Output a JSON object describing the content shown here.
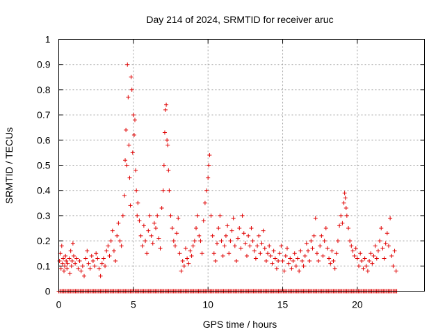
{
  "chart_data": {
    "type": "scatter",
    "title": "Day 214 of 2024, SRMTID for receiver aruc",
    "xlabel": "GPS time / hours",
    "ylabel": "SRMTID / TECUs",
    "xlim": [
      0,
      24.5
    ],
    "ylim": [
      0,
      1
    ],
    "x_ticks": [
      0,
      5,
      10,
      15,
      20
    ],
    "x_tick_labels": [
      "0",
      "5",
      "10",
      "15",
      "20"
    ],
    "y_ticks": [
      0,
      0.1,
      0.2,
      0.3,
      0.4,
      0.5,
      0.6,
      0.7,
      0.8,
      0.9,
      1
    ],
    "y_tick_labels": [
      "0",
      "0.1",
      "0.2",
      "0.3",
      "0.4",
      "0.5",
      "0.6",
      "0.7",
      "0.8",
      "0.9",
      "1"
    ],
    "grid": true,
    "marker": "plus",
    "series_color": "#e00000",
    "series": [
      {
        "name": "SRMTID",
        "points": [
          [
            0.05,
            0.12
          ],
          [
            0.1,
            0.15
          ],
          [
            0.15,
            0.09
          ],
          [
            0.2,
            0.18
          ],
          [
            0.25,
            0.11
          ],
          [
            0.3,
            0.13
          ],
          [
            0.35,
            0.08
          ],
          [
            0.4,
            0.1
          ],
          [
            0.45,
            0.14
          ],
          [
            0.5,
            0.12
          ],
          [
            0.55,
            0.09
          ],
          [
            0.6,
            0.11
          ],
          [
            0.7,
            0.13
          ],
          [
            0.75,
            0.07
          ],
          [
            0.8,
            0.16
          ],
          [
            0.85,
            0.1
          ],
          [
            0.9,
            0.12
          ],
          [
            0.95,
            0.19
          ],
          [
            1.0,
            0.14
          ],
          [
            1.1,
            0.11
          ],
          [
            1.2,
            0.13
          ],
          [
            1.3,
            0.09
          ],
          [
            1.4,
            0.12
          ],
          [
            1.5,
            0.08
          ],
          [
            1.6,
            0.1
          ],
          [
            1.7,
            0.06
          ],
          [
            1.8,
            0.13
          ],
          [
            1.9,
            0.16
          ],
          [
            2.0,
            0.11
          ],
          [
            2.1,
            0.09
          ],
          [
            2.2,
            0.14
          ],
          [
            2.3,
            0.12
          ],
          [
            2.4,
            0.1
          ],
          [
            2.5,
            0.15
          ],
          [
            2.6,
            0.13
          ],
          [
            2.7,
            0.09
          ],
          [
            2.8,
            0.06
          ],
          [
            2.9,
            0.11
          ],
          [
            3.0,
            0.13
          ],
          [
            3.1,
            0.1
          ],
          [
            3.2,
            0.16
          ],
          [
            3.3,
            0.18
          ],
          [
            3.4,
            0.14
          ],
          [
            3.5,
            0.2
          ],
          [
            3.6,
            0.24
          ],
          [
            3.7,
            0.16
          ],
          [
            3.8,
            0.12
          ],
          [
            3.9,
            0.22
          ],
          [
            4.0,
            0.27
          ],
          [
            4.1,
            0.2
          ],
          [
            4.2,
            0.18
          ],
          [
            4.3,
            0.3
          ],
          [
            4.4,
            0.38
          ],
          [
            4.45,
            0.52
          ],
          [
            4.5,
            0.64
          ],
          [
            4.55,
            0.5
          ],
          [
            4.6,
            0.9
          ],
          [
            4.65,
            0.77
          ],
          [
            4.7,
            0.58
          ],
          [
            4.75,
            0.45
          ],
          [
            4.8,
            0.34
          ],
          [
            4.85,
            0.85
          ],
          [
            4.9,
            0.8
          ],
          [
            4.95,
            0.55
          ],
          [
            5.0,
            0.7
          ],
          [
            5.05,
            0.62
          ],
          [
            5.1,
            0.68
          ],
          [
            5.15,
            0.48
          ],
          [
            5.2,
            0.4
          ],
          [
            5.25,
            0.3
          ],
          [
            5.3,
            0.35
          ],
          [
            5.4,
            0.28
          ],
          [
            5.5,
            0.22
          ],
          [
            5.6,
            0.18
          ],
          [
            5.7,
            0.26
          ],
          [
            5.8,
            0.2
          ],
          [
            5.9,
            0.15
          ],
          [
            6.0,
            0.24
          ],
          [
            6.1,
            0.3
          ],
          [
            6.2,
            0.22
          ],
          [
            6.3,
            0.19
          ],
          [
            6.4,
            0.27
          ],
          [
            6.5,
            0.25
          ],
          [
            6.6,
            0.3
          ],
          [
            6.7,
            0.21
          ],
          [
            6.8,
            0.17
          ],
          [
            6.9,
            0.33
          ],
          [
            7.0,
            0.4
          ],
          [
            7.05,
            0.5
          ],
          [
            7.1,
            0.63
          ],
          [
            7.15,
            0.72
          ],
          [
            7.2,
            0.74
          ],
          [
            7.25,
            0.6
          ],
          [
            7.3,
            0.58
          ],
          [
            7.35,
            0.48
          ],
          [
            7.4,
            0.4
          ],
          [
            7.5,
            0.3
          ],
          [
            7.6,
            0.25
          ],
          [
            7.7,
            0.2
          ],
          [
            7.8,
            0.18
          ],
          [
            7.9,
            0.23
          ],
          [
            8.0,
            0.29
          ],
          [
            8.1,
            0.15
          ],
          [
            8.2,
            0.08
          ],
          [
            8.3,
            0.12
          ],
          [
            8.4,
            0.1
          ],
          [
            8.5,
            0.17
          ],
          [
            8.6,
            0.13
          ],
          [
            8.7,
            0.11
          ],
          [
            8.8,
            0.16
          ],
          [
            8.9,
            0.14
          ],
          [
            9.0,
            0.18
          ],
          [
            9.1,
            0.2
          ],
          [
            9.2,
            0.25
          ],
          [
            9.3,
            0.3
          ],
          [
            9.4,
            0.22
          ],
          [
            9.5,
            0.2
          ],
          [
            9.6,
            0.15
          ],
          [
            9.7,
            0.28
          ],
          [
            9.8,
            0.35
          ],
          [
            9.9,
            0.4
          ],
          [
            10.0,
            0.45
          ],
          [
            10.05,
            0.5
          ],
          [
            10.1,
            0.54
          ],
          [
            10.2,
            0.3
          ],
          [
            10.3,
            0.22
          ],
          [
            10.4,
            0.15
          ],
          [
            10.5,
            0.12
          ],
          [
            10.6,
            0.19
          ],
          [
            10.7,
            0.25
          ],
          [
            10.8,
            0.3
          ],
          [
            10.9,
            0.2
          ],
          [
            11.0,
            0.14
          ],
          [
            11.1,
            0.18
          ],
          [
            11.2,
            0.22
          ],
          [
            11.3,
            0.26
          ],
          [
            11.4,
            0.15
          ],
          [
            11.5,
            0.2
          ],
          [
            11.6,
            0.24
          ],
          [
            11.7,
            0.29
          ],
          [
            11.8,
            0.18
          ],
          [
            11.9,
            0.12
          ],
          [
            12.0,
            0.21
          ],
          [
            12.1,
            0.25
          ],
          [
            12.2,
            0.17
          ],
          [
            12.3,
            0.3
          ],
          [
            12.4,
            0.23
          ],
          [
            12.5,
            0.19
          ],
          [
            12.6,
            0.14
          ],
          [
            12.7,
            0.22
          ],
          [
            12.8,
            0.18
          ],
          [
            12.9,
            0.25
          ],
          [
            13.0,
            0.2
          ],
          [
            13.1,
            0.16
          ],
          [
            13.2,
            0.13
          ],
          [
            13.3,
            0.18
          ],
          [
            13.4,
            0.22
          ],
          [
            13.5,
            0.15
          ],
          [
            13.6,
            0.19
          ],
          [
            13.7,
            0.24
          ],
          [
            13.8,
            0.17
          ],
          [
            13.9,
            0.12
          ],
          [
            14.0,
            0.15
          ],
          [
            14.1,
            0.18
          ],
          [
            14.2,
            0.14
          ],
          [
            14.3,
            0.11
          ],
          [
            14.4,
            0.16
          ],
          [
            14.5,
            0.13
          ],
          [
            14.6,
            0.09
          ],
          [
            14.7,
            0.12
          ],
          [
            14.8,
            0.15
          ],
          [
            14.9,
            0.18
          ],
          [
            15.0,
            0.12
          ],
          [
            15.1,
            0.08
          ],
          [
            15.2,
            0.14
          ],
          [
            15.3,
            0.17
          ],
          [
            15.4,
            0.11
          ],
          [
            15.5,
            0.13
          ],
          [
            15.6,
            0.09
          ],
          [
            15.7,
            0.12
          ],
          [
            15.8,
            0.15
          ],
          [
            15.9,
            0.1
          ],
          [
            16.0,
            0.13
          ],
          [
            16.1,
            0.08
          ],
          [
            16.2,
            0.16
          ],
          [
            16.3,
            0.12
          ],
          [
            16.4,
            0.1
          ],
          [
            16.5,
            0.14
          ],
          [
            16.6,
            0.19
          ],
          [
            16.7,
            0.16
          ],
          [
            16.8,
            0.12
          ],
          [
            16.9,
            0.2
          ],
          [
            17.0,
            0.17
          ],
          [
            17.1,
            0.22
          ],
          [
            17.2,
            0.29
          ],
          [
            17.3,
            0.15
          ],
          [
            17.4,
            0.12
          ],
          [
            17.5,
            0.18
          ],
          [
            17.6,
            0.22
          ],
          [
            17.7,
            0.14
          ],
          [
            17.8,
            0.2
          ],
          [
            17.9,
            0.25
          ],
          [
            18.0,
            0.17
          ],
          [
            18.1,
            0.13
          ],
          [
            18.2,
            0.11
          ],
          [
            18.3,
            0.16
          ],
          [
            18.4,
            0.12
          ],
          [
            18.5,
            0.09
          ],
          [
            18.6,
            0.15
          ],
          [
            18.7,
            0.2
          ],
          [
            18.8,
            0.26
          ],
          [
            18.9,
            0.3
          ],
          [
            19.0,
            0.27
          ],
          [
            19.1,
            0.35
          ],
          [
            19.15,
            0.39
          ],
          [
            19.2,
            0.37
          ],
          [
            19.25,
            0.33
          ],
          [
            19.3,
            0.3
          ],
          [
            19.4,
            0.25
          ],
          [
            19.5,
            0.2
          ],
          [
            19.6,
            0.18
          ],
          [
            19.7,
            0.16
          ],
          [
            19.8,
            0.14
          ],
          [
            19.9,
            0.17
          ],
          [
            20.0,
            0.13
          ],
          [
            20.1,
            0.1
          ],
          [
            20.2,
            0.15
          ],
          [
            20.3,
            0.12
          ],
          [
            20.4,
            0.09
          ],
          [
            20.5,
            0.13
          ],
          [
            20.6,
            0.1
          ],
          [
            20.7,
            0.08
          ],
          [
            20.8,
            0.12
          ],
          [
            20.9,
            0.15
          ],
          [
            21.0,
            0.11
          ],
          [
            21.1,
            0.14
          ],
          [
            21.2,
            0.18
          ],
          [
            21.3,
            0.13
          ],
          [
            21.4,
            0.16
          ],
          [
            21.5,
            0.2
          ],
          [
            21.6,
            0.25
          ],
          [
            21.7,
            0.17
          ],
          [
            21.8,
            0.13
          ],
          [
            21.9,
            0.19
          ],
          [
            22.0,
            0.23
          ],
          [
            22.1,
            0.18
          ],
          [
            22.2,
            0.29
          ],
          [
            22.3,
            0.14
          ],
          [
            22.4,
            0.1
          ],
          [
            22.5,
            0.16
          ],
          [
            22.6,
            0.08
          ]
        ]
      }
    ],
    "zero_band": [
      0.0,
      22.7
    ]
  }
}
